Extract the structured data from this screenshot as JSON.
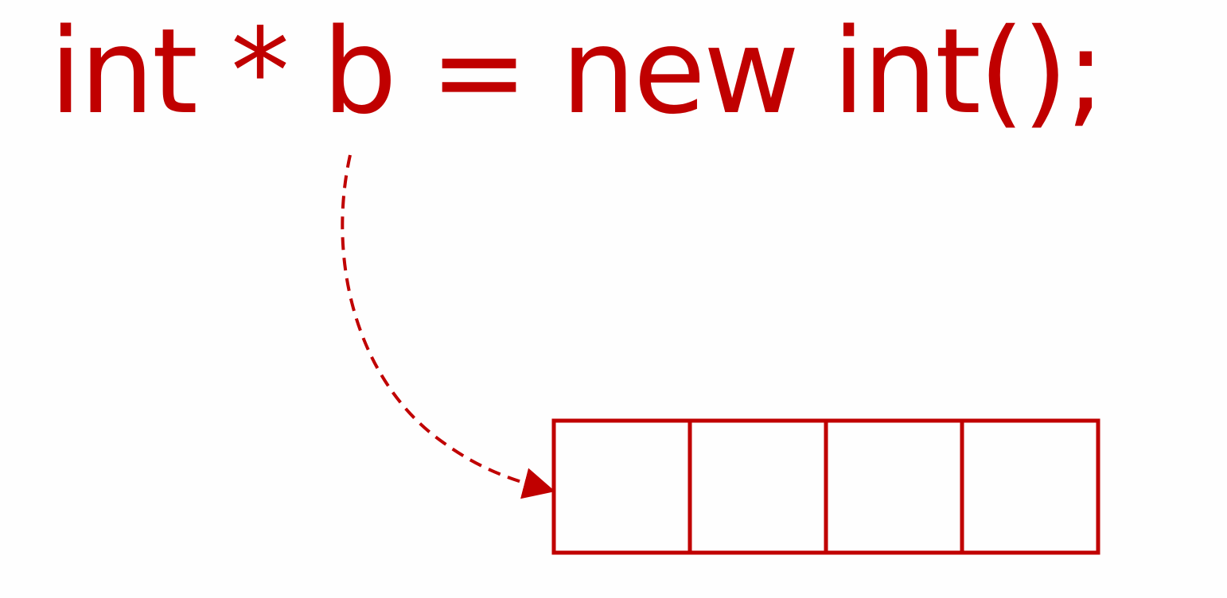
{
  "code": {
    "text": "int * b = new int();"
  },
  "memory": {
    "cell_count": 4
  },
  "colors": {
    "accent": "#c00000",
    "background": "#fefefe"
  }
}
